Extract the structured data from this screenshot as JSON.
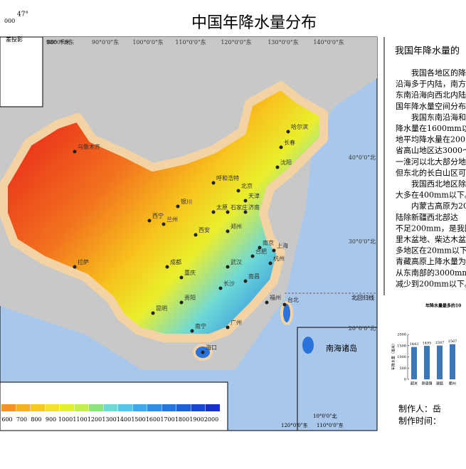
{
  "title": "中国年降水量分布",
  "scale_box": {
    "scale": "980 千米",
    "ratio": "000",
    "projection": "差投影",
    "angle": "47°"
  },
  "longitudes": [
    "80°0'0\"东",
    "90°0'0\"东",
    "100°0'0\"东",
    "110°0'0\"东",
    "120°0'0\"东",
    "130°0'0\"东",
    "140°0'0\"东"
  ],
  "latitudes": [
    "40°0'0\"北",
    "30°0'0\"北",
    "20°0'0\"北"
  ],
  "tropic": "北回归线",
  "cities": [
    "乌鲁木齐",
    "哈尔滨",
    "长春",
    "沈阳",
    "呼和浩特",
    "北京",
    "天津",
    "银川",
    "石家庄",
    "济南",
    "太原",
    "西宁",
    "兰州",
    "郑州",
    "西安",
    "南京",
    "上海",
    "合肥",
    "拉萨",
    "成都",
    "重庆",
    "武汉",
    "杭州",
    "长沙",
    "南昌",
    "贵阳",
    "昆明",
    "福州",
    "台北",
    "南宁",
    "广州",
    "海口"
  ],
  "inset": {
    "title": "南海诸岛",
    "latitude": "10°0'0\"北",
    "longitude_a": "110°0'0\"东",
    "longitude_b": "120°0'0\"东"
  },
  "legend": {
    "ticks": [
      600,
      700,
      800,
      900,
      1000,
      1100,
      1200,
      1300,
      1400,
      1500,
      1600,
      1700,
      1800,
      1900,
      2000
    ]
  },
  "panel": {
    "heading": "我国年降水量的",
    "lines": [
      "我国各地区的降",
      "沿海多于内陆，南方",
      "东南沿海向西北内陆",
      "国年降水量空间分布",
      "我国东南沿海和",
      "降水量在1600mm以上",
      "地平均降水量在200",
      "省高山地区达3000～",
      "一淮河以北大部分地",
      "但东北的长白山区可",
      "我国西北地区除山地",
      "大多在400mm以下。",
      "内蒙古高原为200～",
      "陆除新疆西北部达",
      "不足200mm，是我国",
      "里木盆地、柴达木盆",
      "多地区在20mm以下，",
      "青藏高原上降水量为",
      "从东南部的3000mm以",
      "减少到200mm以下。"
    ],
    "author": "制作人：岳",
    "date": "制作时间："
  },
  "chart_data": {
    "type": "bar",
    "title": "年降水量最多的10",
    "ylabel": "年降水量（毫米）",
    "categories": [
      "韶关",
      "景德镇",
      "建瓯",
      "衢州"
    ],
    "values": [
      1443,
      1495,
      1507,
      1567
    ],
    "color": "#3e77b6",
    "ylim": [
      0,
      2000
    ],
    "yticks": [
      0,
      500,
      1000,
      1500,
      2000
    ]
  }
}
